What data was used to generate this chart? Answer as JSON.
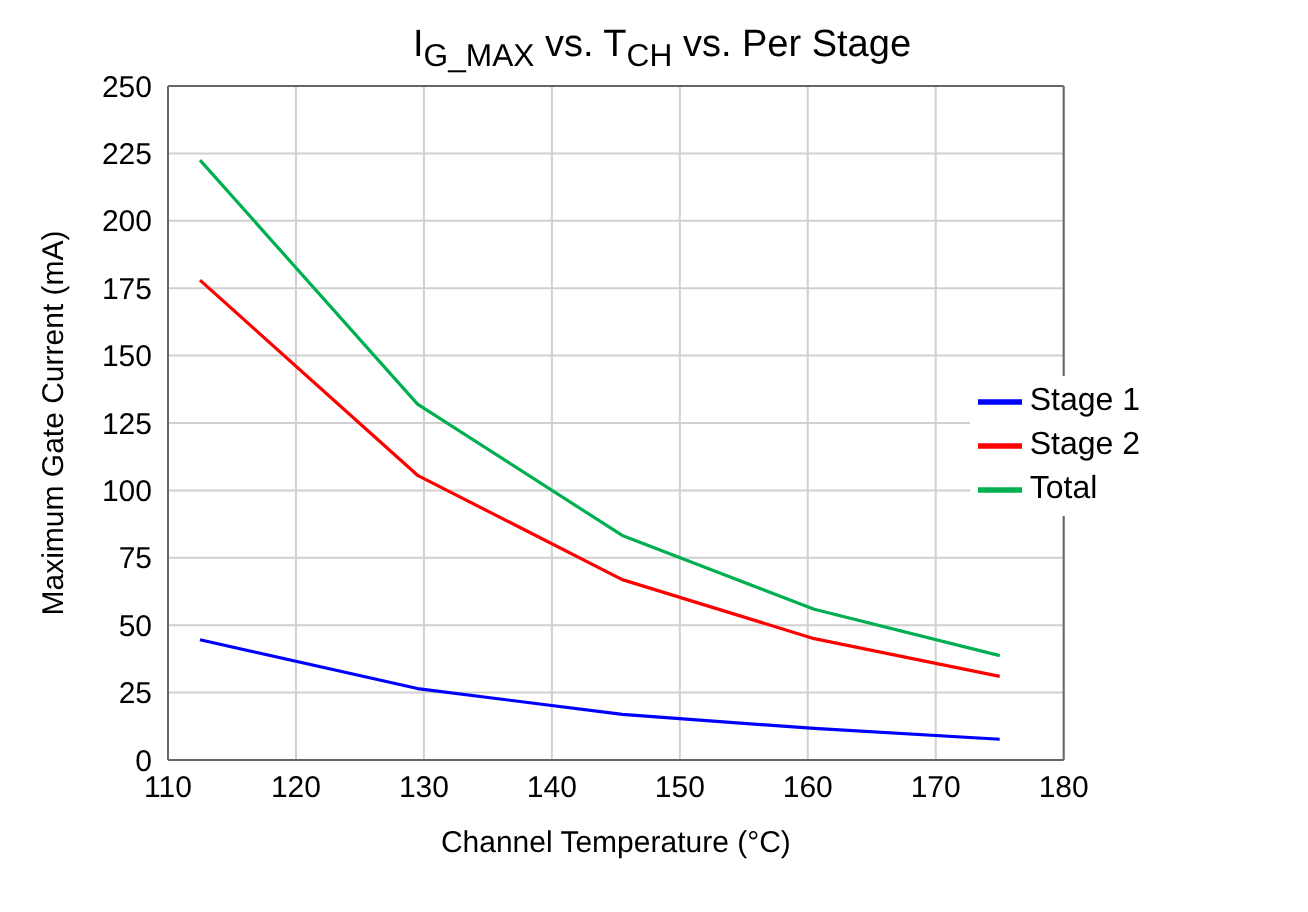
{
  "chart_data": {
    "type": "line",
    "title": "I$_{G_MAX}$ vs. T$_{CH}$ vs. Per Stage",
    "xlabel": "Channel Temperature (°C)",
    "ylabel": "Maximum Gate Current (mA)",
    "x": [
      112.5,
      129.5,
      145.5,
      160.5,
      175
    ],
    "series": [
      {
        "name": "Stage 1",
        "color": "#0000ff",
        "values": [
          44.6,
          26.5,
          16.9,
          11.7,
          7.7
        ]
      },
      {
        "name": "Stage 2",
        "color": "#ff0000",
        "values": [
          178,
          105.6,
          66.9,
          45,
          31
        ]
      },
      {
        "name": "Total",
        "color": "#00b050",
        "values": [
          222.5,
          132,
          83.3,
          55.9,
          38.7
        ]
      }
    ],
    "xlim": [
      110,
      180
    ],
    "xticks": [
      110,
      120,
      130,
      140,
      150,
      160,
      170,
      180
    ],
    "ylim": [
      0,
      250
    ],
    "yticks": [
      0,
      25,
      50,
      75,
      100,
      125,
      150,
      175,
      200,
      225,
      250
    ],
    "grid": true,
    "legend": "right",
    "marker": "none",
    "line_style": "solid"
  }
}
